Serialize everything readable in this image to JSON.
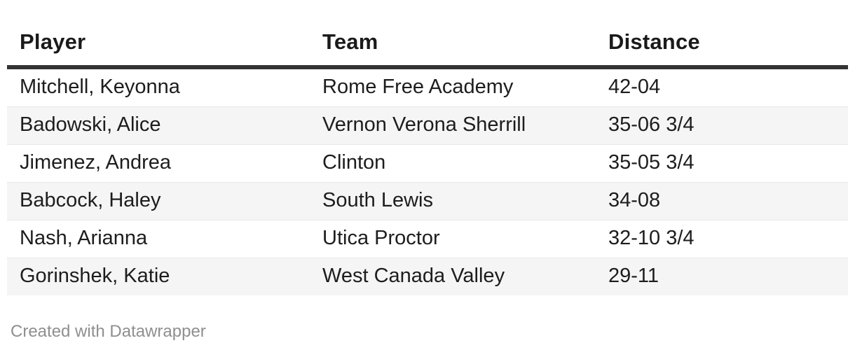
{
  "chart_data": {
    "type": "table",
    "columns": [
      {
        "key": "player",
        "label": "Player"
      },
      {
        "key": "team",
        "label": "Team"
      },
      {
        "key": "distance",
        "label": "Distance"
      }
    ],
    "rows": [
      {
        "player": "Mitchell, Keyonna",
        "team": "Rome Free Academy",
        "distance": "42-04"
      },
      {
        "player": "Badowski, Alice",
        "team": "Vernon Verona Sherrill",
        "distance": "35-06 3/4"
      },
      {
        "player": "Jimenez, Andrea",
        "team": "Clinton",
        "distance": "35-05 3/4"
      },
      {
        "player": "Babcock, Haley",
        "team": "South Lewis",
        "distance": "34-08"
      },
      {
        "player": "Nash, Arianna",
        "team": "Utica Proctor",
        "distance": "32-10 3/4"
      },
      {
        "player": "Gorinshek, Katie",
        "team": "West Canada Valley",
        "distance": "29-11"
      }
    ],
    "layout": {
      "striped": true,
      "stripe_color": "#f5f5f5",
      "separator_color": "#e8e8e8",
      "header_border_color": "#333333",
      "text_color": "#1d1d1d",
      "footer_text_color": "#8f8f8f",
      "legend": "none",
      "grid": "row-separators-only"
    }
  },
  "footer": {
    "attribution": "Created with Datawrapper"
  }
}
